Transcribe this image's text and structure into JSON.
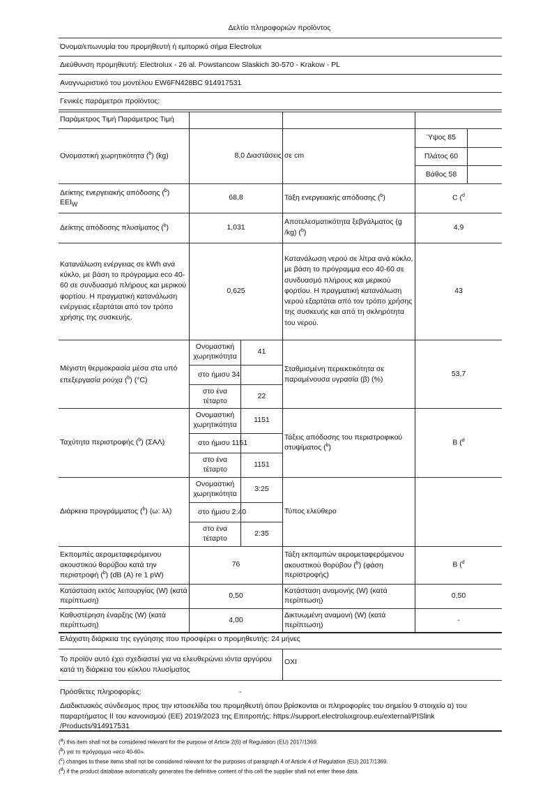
{
  "title": "Δελτίο πληροφοριών προϊόντος",
  "supplier_name": "Όνομα/επωνυμία του προμηθευτή ή εμπορικό σήμα Electrolux",
  "supplier_address": "Διεύθυνση προμηθευτή: Electrolux - 26 al. Powstancow Slaskich 30-570 - Krakow - PL",
  "model_id": "Αναγνωριστικό του μοντέλου EW6FN428BC 914917531",
  "general_params": "Γενικές παράμετροι προϊόντος:",
  "table": {
    "header": "Παράμετρος Τιμή Παράμετρος Τιμή",
    "capacity_label": "Ονομαστική χωρητικότητα",
    "capacity_unit": "(kg)",
    "capacity_value": "8,0 Διαστάσεις",
    "dimensions_label": "σε cm",
    "height": "Ύψος 85",
    "width": "Πλάτος 60",
    "depth": "Βάθος 58",
    "eei_label": "Δείκτης ενεργειακής απόδοσης",
    "eei_sub": "EEI",
    "eei_sub_w": "W",
    "eei_value": "68,8",
    "energy_class_label": "Τάξη ενεργειακής απόδοσης",
    "energy_class_value": "C (",
    "wash_index_label": "Δείκτης απόδοσης πλυσίματος",
    "wash_index_value": "1,031",
    "rinse_label_1": "Αποτελεσματικότητα ξεβγάλματος (g",
    "rinse_label_2": "/kg)",
    "rinse_value": "4,9",
    "energy_cons_label": "Κατανάλωση ενέργειας σε kWh ανά κύκλο, με βάση το πρόγραμμα eco 40-60 σε συνδυασμό πλήρους και μερικού φορτίου. Η πραγματική κατανάλωση ενέργειας εξαρτάται από τον τρόπο χρήσης της συσκευής.",
    "energy_cons_value": "0,625",
    "water_cons_label": "Κατανάλωση νερού σε λίτρα ανά κύκλο, με βάση το πρόγραμμα eco 40-60 σε συνδυασμό πλήρους και μερικού φορτίου. Η πραγματική κατανάλωση νερού εξαρτάται από τον τρόπο χρήσης της συσκευής και από τη σκληρότητα του νερού.",
    "water_cons_value": "43",
    "sub_rated": "Ονομαστική χωρητικότητα",
    "sub_half": "στο ήμισυ",
    "sub_quarter": "στο ένα τέταρτο",
    "temp_label": "Μέγιστη θερμοκρασία μέσα στα υπό επεξεργασία ρούχα",
    "temp_unit": "(°C)",
    "temp_values": [
      "41",
      "34",
      "22"
    ],
    "moisture_label": "Σταθμισμένη περιεκτικότητα σε παραμένουσα υγρασία (β) (%)",
    "moisture_value": "53,7",
    "spin_label": "Ταχύτητα περιστροφής",
    "spin_unit": "(ΣΑΛ)",
    "spin_values": [
      "1151",
      "1151",
      "1151"
    ],
    "spin_class_label": "Τάξεις απόδοσης του περιστροφικού στυψίματος",
    "spin_class_value": "B (",
    "duration_label": "Διάρκεια προγράμματος",
    "duration_unit": "(ω: λλ)",
    "duration_values": [
      "3:25",
      "2:40",
      "2:35"
    ],
    "type_label": "Τύπος ελεύθερο",
    "noise_label": "Εκπομπές αερομεταφερόμενου ακουστικού θορύβου κατά την περιστροφή",
    "noise_unit": "(dB (A) re 1 pW)",
    "noise_value": "76",
    "noise_class_label": "Τάξη εκπομπών αερομεταφερόμενου ακουστικού θορύβου",
    "noise_class_unit": "(φάση περιστροφής)",
    "noise_class_value": "B (",
    "off_label": "Κατάσταση εκτός λειτουργίας (W) (κατά περίπτωση)",
    "off_value": "0,50",
    "standby_label": "Κατάσταση αναμονής (W) (κατά περίπτωση)",
    "standby_value": "0,50",
    "delay_label": "Καθυστέρηση έναρξης (W) (κατά περίπτωση)",
    "delay_value": "4,00",
    "network_label": "Δικτυωμένη αναμονή (W) (κατά περίπτωση)",
    "network_value": "-"
  },
  "warranty": "Ελάχιστη διάρκεια της εγγύησης που προσφέρει ο προμηθευτής: 24 μήνες",
  "silver_label": "Το προϊόν αυτό έχει σχεδιαστεί για να ελευθερώνει ιόντα αργύρου κατά τη διάρκεια του κύκλου πλυσίματος",
  "silver_value": "OXI",
  "additional_label": "Πρόσθετες πληροφορίες:",
  "additional_value": "-",
  "link_text": "Διαδικτυακός σύνδεσμος προς την ιστοσελίδα του προμηθευτή όπου βρίσκονται οι πληροφορίες του σημείου 9 στοιχείο α) του παραρτήματος II του κανονισμού (ΕΕ) 2019/2023 της Επιτροπής: https://support.electroluxgroup.eu/external/PISlink /Products/914917531",
  "footnotes": [
    {
      "mark": "a",
      "text": ") this item shall not be considered relevant for the purpose of Article 2(6) of Regulation (EU) 2017/1369."
    },
    {
      "mark": "b",
      "text": ") για το πρόγραμμα «eco 40-60»."
    },
    {
      "mark": "c",
      "text": ") changes to these items shall not be considered relevant for the purposes of paragraph 4 of Article 4 of Regulation (EU) 2017/1369."
    },
    {
      "mark": "d",
      "text": ") if the product database automatically generates the definitive content of this cell the supplier shall not enter these data."
    }
  ],
  "ref_b": "b",
  "ref_d": "d"
}
